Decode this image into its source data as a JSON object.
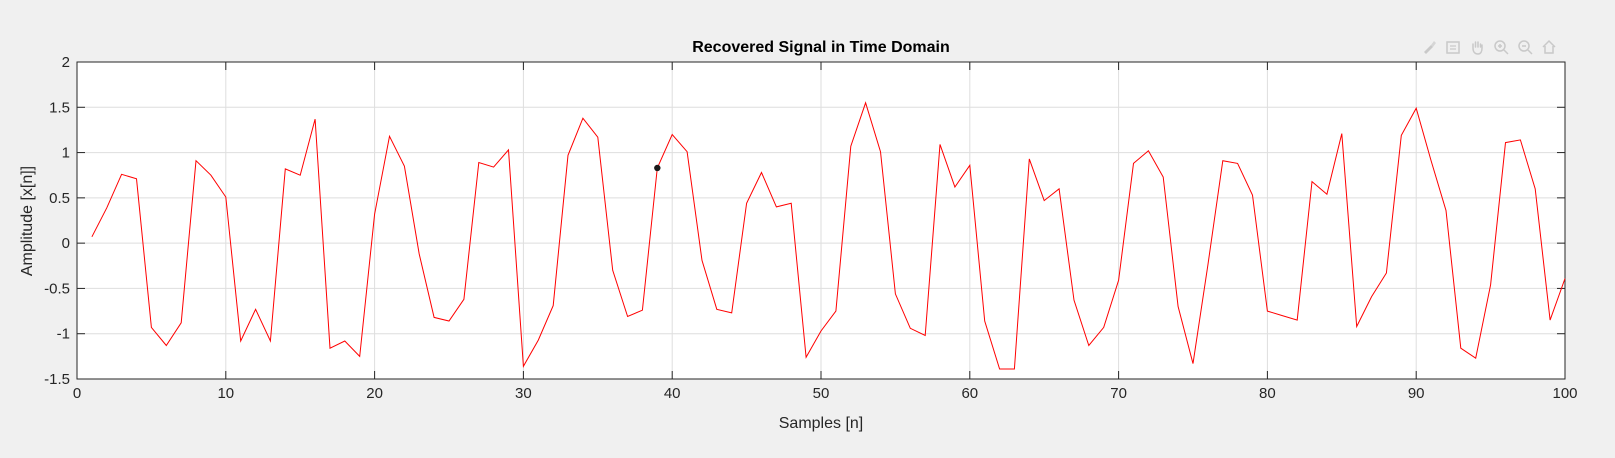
{
  "window": {
    "background": "#f0f0f0"
  },
  "toolbar": {
    "tools": [
      {
        "name": "brush-icon"
      },
      {
        "name": "export-icon"
      },
      {
        "name": "pan-hand-icon"
      },
      {
        "name": "zoom-in-icon"
      },
      {
        "name": "zoom-out-icon"
      },
      {
        "name": "home-icon"
      }
    ]
  },
  "chart_data": {
    "type": "line",
    "title": "Recovered Signal in Time Domain",
    "xlabel": "Samples [n]",
    "ylabel": "Amplitude [x[n]]",
    "xlim": [
      0,
      100
    ],
    "ylim": [
      -1.5,
      2
    ],
    "xticks": [
      0,
      10,
      20,
      30,
      40,
      50,
      60,
      70,
      80,
      90,
      100
    ],
    "xtick_labels": [
      "0",
      "10",
      "20",
      "30",
      "40",
      "50",
      "60",
      "70",
      "80",
      "90",
      "100"
    ],
    "yticks": [
      -1.5,
      -1,
      -0.5,
      0,
      0.5,
      1,
      1.5,
      2
    ],
    "ytick_labels": [
      "-1.5",
      "-1",
      "-0.5",
      "0",
      "0.5",
      "1",
      "1.5",
      "2"
    ],
    "grid": true,
    "line_color": "#ff0000",
    "marker": {
      "x": 39,
      "y": 0.83,
      "color": "#1a1a1a"
    },
    "series": [
      {
        "x": [
          1,
          2,
          3,
          4,
          5,
          6,
          7,
          8,
          9,
          10,
          11,
          12,
          13,
          14,
          15,
          16,
          17,
          18,
          19,
          20,
          21,
          22,
          23,
          24,
          25,
          26,
          27,
          28,
          29,
          30,
          31,
          32,
          33,
          34,
          35,
          36,
          37,
          38,
          39,
          40,
          41,
          42,
          43,
          44,
          45,
          46,
          47,
          48,
          49,
          50,
          51,
          52,
          53,
          54,
          55,
          56,
          57,
          58,
          59,
          60,
          61,
          62,
          63,
          64,
          65,
          66,
          67,
          68,
          69,
          70,
          71,
          72,
          73,
          74,
          75,
          76,
          77,
          78,
          79,
          80,
          81,
          82,
          83,
          84,
          85,
          86,
          87,
          88,
          89,
          90,
          91,
          92,
          93,
          94,
          95,
          96,
          97,
          98,
          99,
          100
        ],
        "values": [
          0.07,
          0.39,
          0.76,
          0.71,
          -0.93,
          -1.13,
          -0.88,
          0.91,
          0.75,
          0.51,
          -1.08,
          -0.73,
          -1.08,
          0.82,
          0.75,
          1.37,
          -1.16,
          -1.08,
          -1.25,
          0.32,
          1.18,
          0.85,
          -0.12,
          -0.82,
          -0.86,
          -0.62,
          0.89,
          0.84,
          1.03,
          -1.36,
          -1.07,
          -0.69,
          0.97,
          1.38,
          1.17,
          -0.3,
          -0.81,
          -0.74,
          0.83,
          1.2,
          1.01,
          -0.19,
          -0.73,
          -0.77,
          0.44,
          0.78,
          0.4,
          0.44,
          -1.26,
          -0.97,
          -0.75,
          1.07,
          1.55,
          1.01,
          -0.56,
          -0.94,
          -1.02,
          1.09,
          0.62,
          0.86,
          -0.86,
          -1.39,
          -1.39,
          0.93,
          0.47,
          0.6,
          -0.63,
          -1.13,
          -0.93,
          -0.41,
          0.88,
          1.02,
          0.73,
          -0.7,
          -1.33,
          -0.24,
          0.91,
          0.88,
          0.53,
          -0.75,
          -0.8,
          -0.85,
          0.68,
          0.54,
          1.21,
          -0.92,
          -0.59,
          -0.33,
          1.19,
          1.49,
          0.91,
          0.36,
          -1.16,
          -1.27,
          -0.46,
          1.11,
          1.14,
          0.6,
          -0.85,
          -0.39
        ]
      }
    ]
  }
}
